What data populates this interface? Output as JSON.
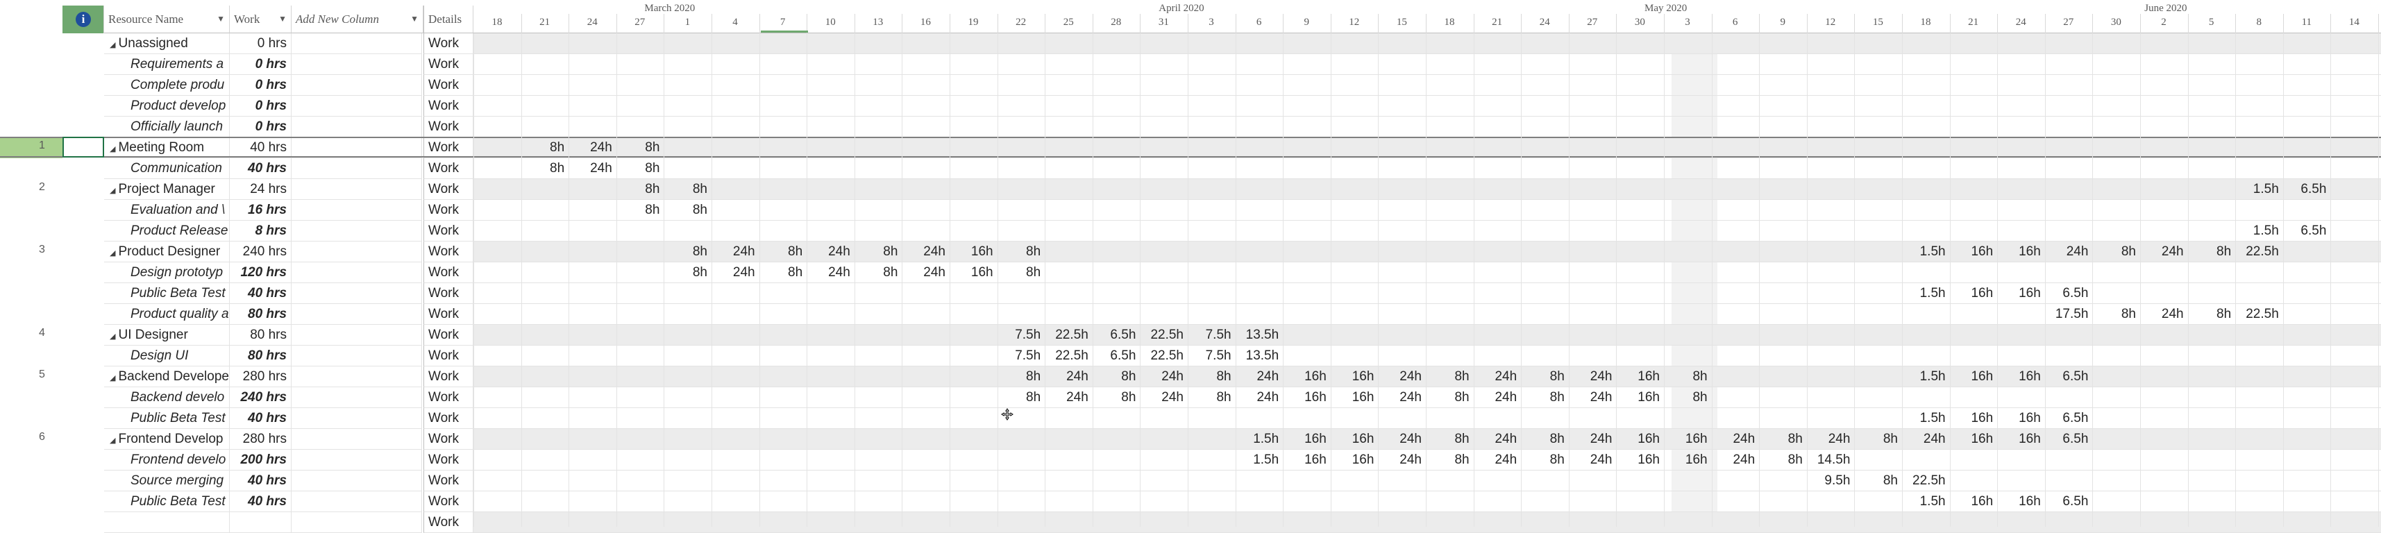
{
  "columns": {
    "resource_name": "Resource Name",
    "work": "Work",
    "add_new_column": "Add New Column",
    "details": "Details"
  },
  "timescale": {
    "months": [
      "March 2020",
      "April 2020",
      "May 2020",
      "June 2020"
    ],
    "days": [
      "18",
      "21",
      "24",
      "27",
      "1",
      "4",
      "7",
      "10",
      "13",
      "16",
      "19",
      "22",
      "25",
      "28",
      "31",
      "3",
      "6",
      "9",
      "12",
      "15",
      "18",
      "21",
      "24",
      "27",
      "30",
      "3",
      "6",
      "9",
      "12",
      "15",
      "18",
      "21",
      "24",
      "27",
      "30",
      "2",
      "5",
      "8",
      "11",
      "14"
    ]
  },
  "rows": [
    {
      "num": "",
      "type": "summary",
      "name": "Unassigned",
      "work": "0 hrs",
      "details": "Work",
      "values": []
    },
    {
      "num": "",
      "type": "task",
      "name": "Requirements a",
      "work": "0 hrs",
      "details": "Work",
      "values": []
    },
    {
      "num": "",
      "type": "task",
      "name": "Complete produ",
      "work": "0 hrs",
      "details": "Work",
      "values": []
    },
    {
      "num": "",
      "type": "task",
      "name": "Product develop",
      "work": "0 hrs",
      "details": "Work",
      "values": []
    },
    {
      "num": "",
      "type": "task",
      "name": "Officially launch",
      "work": "0 hrs",
      "details": "Work",
      "values": []
    },
    {
      "num": "1",
      "type": "summary",
      "name": "Meeting Room",
      "work": "40 hrs",
      "details": "Work",
      "values": [
        [
          1,
          "8h"
        ],
        [
          2,
          "24h"
        ],
        [
          3,
          "8h"
        ]
      ]
    },
    {
      "num": "",
      "type": "task",
      "name": "Communication",
      "work": "40 hrs",
      "details": "Work",
      "values": [
        [
          1,
          "8h"
        ],
        [
          2,
          "24h"
        ],
        [
          3,
          "8h"
        ]
      ]
    },
    {
      "num": "2",
      "type": "summary",
      "name": "Project Manager",
      "work": "24 hrs",
      "details": "Work",
      "values": [
        [
          3,
          "8h"
        ],
        [
          4,
          "8h"
        ],
        [
          37,
          "1.5h"
        ],
        [
          38,
          "6.5h"
        ]
      ]
    },
    {
      "num": "",
      "type": "task",
      "name": "Evaluation and \\",
      "work": "16 hrs",
      "details": "Work",
      "values": [
        [
          3,
          "8h"
        ],
        [
          4,
          "8h"
        ]
      ]
    },
    {
      "num": "",
      "type": "task",
      "name": "Product Release",
      "work": "8 hrs",
      "details": "Work",
      "values": [
        [
          37,
          "1.5h"
        ],
        [
          38,
          "6.5h"
        ]
      ]
    },
    {
      "num": "3",
      "type": "summary",
      "name": "Product Designer",
      "work": "240 hrs",
      "details": "Work",
      "values": [
        [
          4,
          "8h"
        ],
        [
          5,
          "24h"
        ],
        [
          6,
          "8h"
        ],
        [
          7,
          "24h"
        ],
        [
          8,
          "8h"
        ],
        [
          9,
          "24h"
        ],
        [
          10,
          "16h"
        ],
        [
          11,
          "8h"
        ],
        [
          30,
          "1.5h"
        ],
        [
          31,
          "16h"
        ],
        [
          32,
          "16h"
        ],
        [
          33,
          "24h"
        ],
        [
          34,
          "8h"
        ],
        [
          35,
          "24h"
        ],
        [
          36,
          "8h"
        ],
        [
          37,
          "22.5h"
        ]
      ]
    },
    {
      "num": "",
      "type": "task",
      "name": "Design prototyp",
      "work": "120 hrs",
      "details": "Work",
      "values": [
        [
          4,
          "8h"
        ],
        [
          5,
          "24h"
        ],
        [
          6,
          "8h"
        ],
        [
          7,
          "24h"
        ],
        [
          8,
          "8h"
        ],
        [
          9,
          "24h"
        ],
        [
          10,
          "16h"
        ],
        [
          11,
          "8h"
        ]
      ]
    },
    {
      "num": "",
      "type": "task",
      "name": "Public Beta Test",
      "work": "40 hrs",
      "details": "Work",
      "values": [
        [
          30,
          "1.5h"
        ],
        [
          31,
          "16h"
        ],
        [
          32,
          "16h"
        ],
        [
          33,
          "6.5h"
        ]
      ]
    },
    {
      "num": "",
      "type": "task",
      "name": "Product quality a",
      "work": "80 hrs",
      "details": "Work",
      "values": [
        [
          33,
          "17.5h"
        ],
        [
          34,
          "8h"
        ],
        [
          35,
          "24h"
        ],
        [
          36,
          "8h"
        ],
        [
          37,
          "22.5h"
        ]
      ]
    },
    {
      "num": "4",
      "type": "summary",
      "name": "UI Designer",
      "work": "80 hrs",
      "details": "Work",
      "values": [
        [
          11,
          "7.5h"
        ],
        [
          12,
          "22.5h"
        ],
        [
          13,
          "6.5h"
        ],
        [
          14,
          "22.5h"
        ],
        [
          15,
          "7.5h"
        ],
        [
          16,
          "13.5h"
        ]
      ]
    },
    {
      "num": "",
      "type": "task",
      "name": "Design UI",
      "work": "80 hrs",
      "details": "Work",
      "values": [
        [
          11,
          "7.5h"
        ],
        [
          12,
          "22.5h"
        ],
        [
          13,
          "6.5h"
        ],
        [
          14,
          "22.5h"
        ],
        [
          15,
          "7.5h"
        ],
        [
          16,
          "13.5h"
        ]
      ]
    },
    {
      "num": "5",
      "type": "summary",
      "name": "Backend Develope",
      "work": "280 hrs",
      "details": "Work",
      "values": [
        [
          11,
          "8h"
        ],
        [
          12,
          "24h"
        ],
        [
          13,
          "8h"
        ],
        [
          14,
          "24h"
        ],
        [
          15,
          "8h"
        ],
        [
          16,
          "24h"
        ],
        [
          17,
          "16h"
        ],
        [
          18,
          "16h"
        ],
        [
          19,
          "24h"
        ],
        [
          20,
          "8h"
        ],
        [
          21,
          "24h"
        ],
        [
          22,
          "8h"
        ],
        [
          23,
          "24h"
        ],
        [
          24,
          "16h"
        ],
        [
          25,
          "8h"
        ],
        [
          30,
          "1.5h"
        ],
        [
          31,
          "16h"
        ],
        [
          32,
          "16h"
        ],
        [
          33,
          "6.5h"
        ]
      ]
    },
    {
      "num": "",
      "type": "task",
      "name": "Backend develo",
      "work": "240 hrs",
      "details": "Work",
      "values": [
        [
          11,
          "8h"
        ],
        [
          12,
          "24h"
        ],
        [
          13,
          "8h"
        ],
        [
          14,
          "24h"
        ],
        [
          15,
          "8h"
        ],
        [
          16,
          "24h"
        ],
        [
          17,
          "16h"
        ],
        [
          18,
          "16h"
        ],
        [
          19,
          "24h"
        ],
        [
          20,
          "8h"
        ],
        [
          21,
          "24h"
        ],
        [
          22,
          "8h"
        ],
        [
          23,
          "24h"
        ],
        [
          24,
          "16h"
        ],
        [
          25,
          "8h"
        ]
      ]
    },
    {
      "num": "",
      "type": "task",
      "name": "Public Beta Test",
      "work": "40 hrs",
      "details": "Work",
      "values": [
        [
          30,
          "1.5h"
        ],
        [
          31,
          "16h"
        ],
        [
          32,
          "16h"
        ],
        [
          33,
          "6.5h"
        ]
      ]
    },
    {
      "num": "6",
      "type": "summary",
      "name": "Frontend Develop",
      "work": "280 hrs",
      "details": "Work",
      "values": [
        [
          16,
          "1.5h"
        ],
        [
          17,
          "16h"
        ],
        [
          18,
          "16h"
        ],
        [
          19,
          "24h"
        ],
        [
          20,
          "8h"
        ],
        [
          21,
          "24h"
        ],
        [
          22,
          "8h"
        ],
        [
          23,
          "24h"
        ],
        [
          24,
          "16h"
        ],
        [
          25,
          "16h"
        ],
        [
          26,
          "24h"
        ],
        [
          27,
          "8h"
        ],
        [
          28,
          "24h"
        ],
        [
          29,
          "8h"
        ],
        [
          30,
          "24h"
        ],
        [
          31,
          "16h"
        ],
        [
          32,
          "16h"
        ],
        [
          33,
          "6.5h"
        ]
      ]
    },
    {
      "num": "",
      "type": "task",
      "name": "Frontend develo",
      "work": "200 hrs",
      "details": "Work",
      "values": [
        [
          16,
          "1.5h"
        ],
        [
          17,
          "16h"
        ],
        [
          18,
          "16h"
        ],
        [
          19,
          "24h"
        ],
        [
          20,
          "8h"
        ],
        [
          21,
          "24h"
        ],
        [
          22,
          "8h"
        ],
        [
          23,
          "24h"
        ],
        [
          24,
          "16h"
        ],
        [
          25,
          "16h"
        ],
        [
          26,
          "24h"
        ],
        [
          27,
          "8h"
        ],
        [
          28,
          "14.5h"
        ]
      ]
    },
    {
      "num": "",
      "type": "task",
      "name": "Source merging",
      "work": "40 hrs",
      "details": "Work",
      "values": [
        [
          28,
          "9.5h"
        ],
        [
          29,
          "8h"
        ],
        [
          30,
          "22.5h"
        ]
      ]
    },
    {
      "num": "",
      "type": "task",
      "name": "Public Beta Test",
      "work": "40 hrs",
      "details": "Work",
      "values": [
        [
          30,
          "1.5h"
        ],
        [
          31,
          "16h"
        ],
        [
          32,
          "16h"
        ],
        [
          33,
          "6.5h"
        ]
      ]
    },
    {
      "num": "",
      "type": "summary",
      "name": "",
      "work": "",
      "details": "Work",
      "values": []
    }
  ]
}
